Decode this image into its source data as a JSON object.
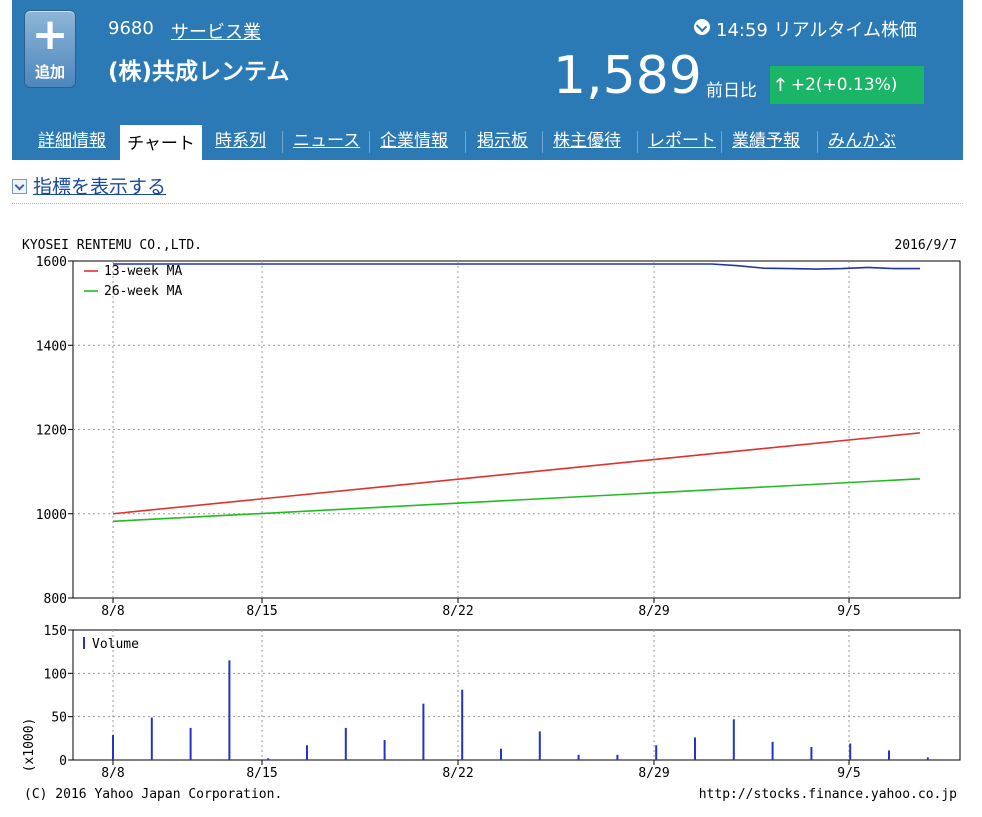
{
  "header": {
    "add_label": "追加",
    "code": "9680",
    "industry": "サービス業",
    "company": "(株)共成レンテム",
    "time": "14:59 リアルタイム株価",
    "price": "1,589",
    "prev_label": "前日比",
    "change": "+2(+0.13%)",
    "colors": {
      "header_bg": "#2b7ab5",
      "change_bg": "#1bb567"
    }
  },
  "tabs": [
    "詳細情報",
    "チャート",
    "時系列",
    "ニュース",
    "企業情報",
    "掲示板",
    "株主優待",
    "レポート",
    "業績予報",
    "みんかぶ"
  ],
  "active_tab": "チャート",
  "indicator_link": "指標を表示する",
  "chart_data": [
    {
      "type": "line",
      "title": "KYOSEI RENTEMU CO.,LTD.",
      "date": "2016/9/7",
      "x_ticks": [
        "8/8",
        "8/15",
        "8/22",
        "8/29",
        "9/5"
      ],
      "ylim": [
        800,
        1600
      ],
      "y_ticks": [
        800,
        1000,
        1200,
        1400,
        1600
      ],
      "grid": true,
      "legend_placement": "top-left",
      "series": [
        {
          "name": "13-week MA",
          "color": "#e03030",
          "start": 1000,
          "end": 1192
        },
        {
          "name": "26-week MA",
          "color": "#22bb22",
          "start": 982,
          "end": 1083
        }
      ],
      "price_series": {
        "color": "#2233aa",
        "values": [
          1600,
          1600,
          1600,
          1600,
          1600,
          1600,
          1600,
          1600,
          1600,
          1600,
          1600,
          1600,
          1600,
          1600,
          1600,
          1600,
          1600,
          1600,
          1600,
          1600,
          1600,
          1600,
          1600,
          1600,
          1596,
          1590,
          1589,
          1588,
          1589,
          1592,
          1589,
          1589
        ]
      }
    },
    {
      "type": "bar",
      "legend": "Volume",
      "ylabel": "(x1000)",
      "ylim": [
        0,
        150
      ],
      "y_ticks": [
        0,
        50,
        100,
        150
      ],
      "x_ticks": [
        "8/8",
        "8/15",
        "8/22",
        "8/29",
        "9/5"
      ],
      "color": "#2233cc",
      "values": [
        29,
        49,
        37,
        115,
        2,
        17,
        37,
        23,
        65,
        81,
        13,
        33,
        6,
        6,
        17,
        26,
        47,
        21,
        15,
        19,
        11,
        3
      ]
    }
  ],
  "footer": {
    "copyright": "(C) 2016 Yahoo Japan Corporation.",
    "url": "http://stocks.finance.yahoo.co.jp"
  }
}
